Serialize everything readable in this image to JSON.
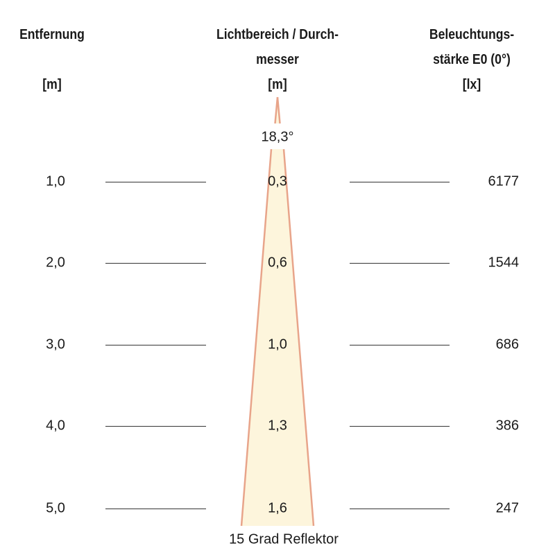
{
  "headers": {
    "distance": [
      "Entfernung",
      "",
      "[m]"
    ],
    "diameter": [
      "Lichtbereich / Durch-",
      "messer",
      "[m]"
    ],
    "illuminance": [
      "Beleuchtungs-",
      "stärke E0 (0°)",
      "[lx]"
    ]
  },
  "beam_angle": "18,3°",
  "reflector_label": "15 Grad Reflektor",
  "rows": [
    {
      "distance": "1,0",
      "diameter": "0,3",
      "illuminance": "6177"
    },
    {
      "distance": "2,0",
      "diameter": "0,6",
      "illuminance": "1544"
    },
    {
      "distance": "3,0",
      "diameter": "1,0",
      "illuminance": "686"
    },
    {
      "distance": "4,0",
      "diameter": "1,3",
      "illuminance": "386"
    },
    {
      "distance": "5,0",
      "diameter": "1,6",
      "illuminance": "247"
    }
  ],
  "colors": {
    "beam_fill": "#fdf5dc",
    "beam_edge": "#e8a48a"
  }
}
